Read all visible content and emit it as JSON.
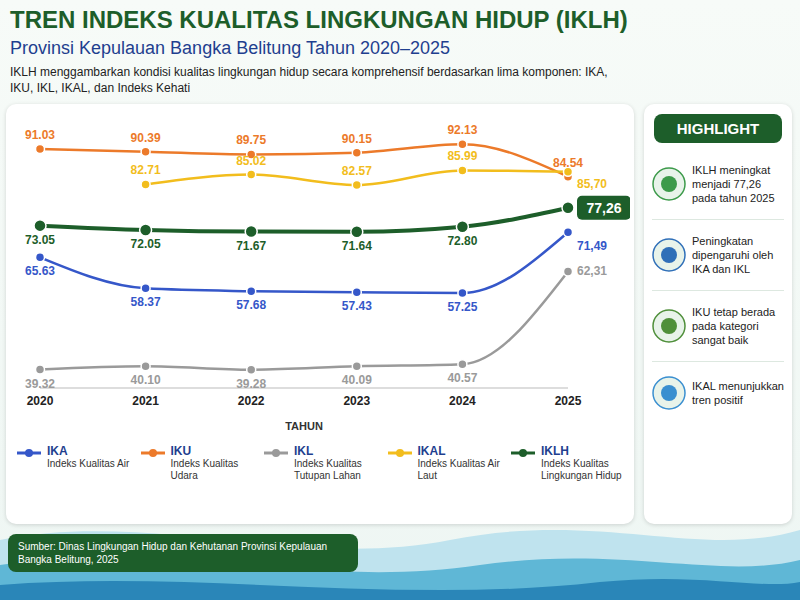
{
  "chart_data": {
    "type": "line",
    "title": "TREN INDEKS KUALITAS LINGKUNGAN HIDUP (IKLH)",
    "subtitle": "Provinsi Kepulauan Bangka Belitung Tahun 2020–2025",
    "description": "IKLH menggambarkan kondisi kualitas lingkungan hidup secara komprehensif berdasarkan lima komponen: IKA, IKU, IKL, IKAL, dan Indeks Kehati",
    "x_label": "TAHUN",
    "categories": [
      "2020",
      "2021",
      "2022",
      "2023",
      "2024",
      "2025"
    ],
    "ylim": [
      35,
      95
    ],
    "tick_labels": "x",
    "grid": false,
    "legend": "bottom",
    "data_labels": true,
    "series": [
      {
        "name": "IKA",
        "description": "Indeks Kualitas Air",
        "color": "#3557c9",
        "marker": "circle",
        "values": [
          65.63,
          58.37,
          57.68,
          57.43,
          57.25,
          71.49
        ],
        "value_labels": [
          "65.63",
          "58.37",
          "57.68",
          "57.43",
          "57.25",
          "71,49"
        ]
      },
      {
        "name": "IKU",
        "description": "Indeks Kualitas Udara",
        "color": "#ec7a2a",
        "marker": "circle",
        "values": [
          91.03,
          90.39,
          89.75,
          90.15,
          92.13,
          84.54
        ],
        "value_labels": [
          "91.03",
          "90.39",
          "89.75",
          "90.15",
          "92.13",
          "84.54"
        ]
      },
      {
        "name": "IKL",
        "description": "Indeks Kualitas Tutupan Lahan",
        "color": "#9a9a9a",
        "marker": "circle",
        "values": [
          39.32,
          40.1,
          39.28,
          40.09,
          40.57,
          62.31
        ],
        "value_labels": [
          "39.32",
          "40.10",
          "39.28",
          "40.09",
          "40.57",
          "62,31"
        ]
      },
      {
        "name": "IKAL",
        "description": "Indeks Kualitas Air Laut",
        "color": "#f2bd1d",
        "marker": "circle",
        "values": [
          null,
          82.71,
          85.02,
          82.57,
          85.99,
          85.7
        ],
        "value_labels": [
          null,
          "82.71",
          "85.02",
          "82.57",
          "85.99",
          "85,70"
        ]
      },
      {
        "name": "IKLH",
        "description": "Indeks Kualitas Lingkungan Hidup",
        "color": "#1d5e2a",
        "marker": "circle",
        "values": [
          73.05,
          72.05,
          71.67,
          71.64,
          72.8,
          77.26
        ],
        "value_labels": [
          "73.05",
          "72.05",
          "71.67",
          "71.64",
          "72.80",
          "77,26"
        ]
      }
    ],
    "highlights_title": "HIGHLIGHT",
    "highlights": [
      "IKLH meningkat menjadi 77,26 pada tahun 2025",
      "Peningkatan dipengaruhi oleh IKA dan IKL",
      "IKU tetap berada pada kategori sangat baik",
      "IKAL menunjukkan tren positif"
    ],
    "source": "Sumber: Dinas Lingkungan Hidup dan Kehutanan Provinsi Kepulauan Bangka Belitung, 2025"
  }
}
